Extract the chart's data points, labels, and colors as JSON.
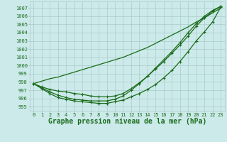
{
  "title": "Graphe pression niveau de la mer (hPa)",
  "xlabel_hours": [
    0,
    1,
    2,
    3,
    4,
    5,
    6,
    7,
    8,
    9,
    10,
    11,
    12,
    13,
    14,
    15,
    16,
    17,
    18,
    19,
    20,
    21,
    22,
    23
  ],
  "ylim": [
    994.5,
    1007.8
  ],
  "xlim": [
    -0.5,
    23.5
  ],
  "yticks": [
    995,
    996,
    997,
    998,
    999,
    1000,
    1001,
    1002,
    1003,
    1004,
    1005,
    1006,
    1007
  ],
  "line_straight": [
    997.8,
    998.1,
    998.4,
    998.6,
    998.9,
    999.2,
    999.5,
    999.8,
    1000.1,
    1000.4,
    1000.7,
    1001.0,
    1001.4,
    1001.8,
    1002.2,
    1002.7,
    1003.2,
    1003.7,
    1004.2,
    1004.7,
    1005.3,
    1005.8,
    1006.4,
    1007.0
  ],
  "line_mid1": [
    997.8,
    997.4,
    997.1,
    996.9,
    996.8,
    996.6,
    996.5,
    996.3,
    996.2,
    996.2,
    996.3,
    996.6,
    997.2,
    997.9,
    998.7,
    999.6,
    1000.5,
    1001.5,
    1002.5,
    1003.6,
    1004.8,
    1005.8,
    1006.6,
    1007.2
  ],
  "line_mid2": [
    997.8,
    997.3,
    996.8,
    996.4,
    996.1,
    995.9,
    995.8,
    995.7,
    995.7,
    995.7,
    995.9,
    996.3,
    997.0,
    997.8,
    998.7,
    999.7,
    1000.7,
    1001.7,
    1002.8,
    1004.0,
    1005.1,
    1006.0,
    1006.7,
    1007.2
  ],
  "line_low": [
    997.8,
    997.2,
    996.6,
    996.1,
    995.9,
    995.7,
    995.6,
    995.5,
    995.4,
    995.4,
    995.6,
    995.8,
    996.2,
    996.6,
    997.1,
    997.7,
    998.5,
    999.4,
    1000.5,
    1001.7,
    1003.0,
    1004.1,
    1005.3,
    1007.1
  ],
  "line_color": "#1a6b1a",
  "bg_color": "#cceaea",
  "grid_color": "#aacaca",
  "marker": "+",
  "marker_size": 3.5,
  "line_width": 0.9,
  "font_color": "#1a6b1a",
  "title_fontsize": 7.0,
  "tick_fontsize": 5.0
}
